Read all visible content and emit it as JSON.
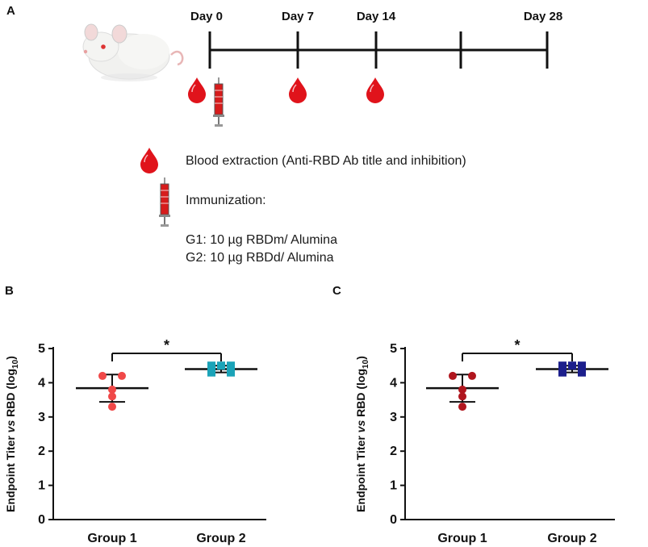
{
  "figure": {
    "panel_a": {
      "letter": "A",
      "timeline_days": [
        "Day 0",
        "Day 7",
        "Day 14",
        "Day 28"
      ],
      "legend": {
        "blood": "Blood extraction (Anti-RBD Ab title and inhibition)",
        "immunization_title": "Immunization:",
        "groups": [
          "G1: 10 µg RBDm/ Alumina",
          "G2: 10 µg RBDd/ Alumina"
        ]
      },
      "colors": {
        "blood": "#e0131b",
        "syringe": "#d61c1c",
        "line": "#111111"
      }
    }
  },
  "chart_data": [
    {
      "panel": "B",
      "type": "scatter",
      "title": "",
      "xlabel": "",
      "ylabel": {
        "main": "Endpoint Titer ",
        "vs": "vs",
        "mid": " RBD (log",
        "sub": "10",
        "end": ")"
      },
      "ylim": [
        0,
        5
      ],
      "yticks": [
        "0",
        "1",
        "2",
        "3",
        "4",
        "5"
      ],
      "categories": [
        "Group 1",
        "Group 2"
      ],
      "series": [
        {
          "name": "Group 1",
          "marker": "circle",
          "color": "#f04848",
          "values": [
            4.2,
            4.2,
            3.6,
            3.3,
            3.8
          ],
          "mean": 3.84,
          "sd": 0.4
        },
        {
          "name": "Group 2",
          "marker": "square",
          "color": "#1ba3b8",
          "values": [
            4.5,
            4.5,
            4.5,
            4.3,
            4.3
          ],
          "mean": 4.4,
          "sd": 0.1
        }
      ],
      "significance": "*"
    },
    {
      "panel": "C",
      "type": "scatter",
      "title": "",
      "xlabel": "",
      "ylabel": {
        "main": "Endpoint Titer ",
        "vs": "vs",
        "mid": " RBD (log",
        "sub": "10",
        "end": ")"
      },
      "ylim": [
        0,
        5
      ],
      "yticks": [
        "0",
        "1",
        "2",
        "3",
        "4",
        "5"
      ],
      "categories": [
        "Group 1",
        "Group 2"
      ],
      "series": [
        {
          "name": "Group 1",
          "marker": "circle",
          "color": "#b0161e",
          "values": [
            4.2,
            4.2,
            3.6,
            3.3,
            3.8
          ],
          "mean": 3.84,
          "sd": 0.4
        },
        {
          "name": "Group 2",
          "marker": "square",
          "color": "#1c1f8c",
          "values": [
            4.5,
            4.5,
            4.5,
            4.3,
            4.3
          ],
          "mean": 4.4,
          "sd": 0.1
        }
      ],
      "significance": "*"
    }
  ]
}
